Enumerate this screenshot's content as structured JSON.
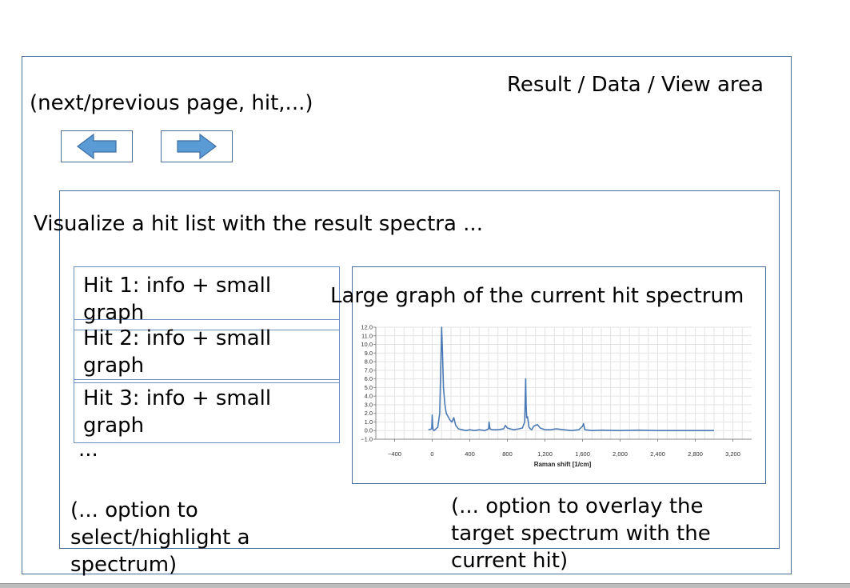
{
  "labels": {
    "result_area": "Result / Data / View area",
    "nav_hint": "(next/previous page, hit,...)",
    "visualize": "Visualize a hit list with the result spectra ...",
    "large_graph": "Large graph of the current hit spectrum",
    "ellipsis": "...",
    "option_select": "(... option to select/highlight a spectrum)",
    "option_overlay": "(... option to overlay the target spectrum with the current hit)"
  },
  "hits": [
    {
      "label": "Hit 1: info + small graph"
    },
    {
      "label": "Hit 2: info + small graph"
    },
    {
      "label": "Hit 3: info + small graph"
    }
  ],
  "icons": {
    "previous": "arrow-left-icon",
    "next": "arrow-right-icon"
  },
  "colors": {
    "frame": "#4a6e9a",
    "arrow": "#5b9bd5",
    "line": "#4a7ab5"
  },
  "chart_data": {
    "type": "line",
    "xlabel": "Raman shift [1/cm]",
    "ylabel": "",
    "xlim": [
      -600,
      3400
    ],
    "ylim": [
      -1.0,
      12.0
    ],
    "xticks": [
      -400,
      0,
      400,
      800,
      1200,
      1600,
      2000,
      2400,
      2800,
      3200
    ],
    "xtick_labels": [
      "−400",
      "0",
      "400",
      "800",
      "1,200",
      "1,600",
      "2,000",
      "2,400",
      "2,800",
      "3,200"
    ],
    "yticks": [
      -1,
      0,
      1,
      2,
      3,
      4,
      5,
      6,
      7,
      8,
      9,
      10,
      11,
      12
    ],
    "ytick_labels": [
      "−1.0",
      "0.0",
      "1.0",
      "2.0",
      "3.0",
      "4.0",
      "5.0",
      "6.0",
      "7.0",
      "8.0",
      "9.0",
      "10.0",
      "11.0",
      "12.0"
    ],
    "grid": true,
    "series": [
      {
        "x": [
          -40,
          -5,
          0,
          5,
          10,
          20,
          40,
          60,
          80,
          90,
          100,
          110,
          120,
          135,
          150,
          170,
          190,
          210,
          230,
          250,
          280,
          320,
          360,
          400,
          450,
          500,
          560,
          600,
          605,
          615,
          640,
          700,
          760,
          780,
          800,
          830,
          870,
          920,
          960,
          985,
          995,
          1000,
          1005,
          1015,
          1030,
          1045,
          1060,
          1080,
          1120,
          1150,
          1175,
          1200,
          1260,
          1320,
          1400,
          1480,
          1560,
          1600,
          1610,
          1625,
          1700,
          1800,
          2000,
          2200,
          2400,
          2600,
          2800,
          3000
        ],
        "y": [
          0.1,
          0.2,
          1.8,
          0.6,
          0.1,
          0.0,
          0.2,
          0.4,
          2.0,
          7.0,
          12.0,
          9.0,
          5.0,
          3.0,
          2.0,
          1.6,
          1.2,
          1.0,
          1.5,
          0.6,
          0.2,
          0.1,
          0.0,
          0.1,
          0.0,
          0.1,
          0.0,
          0.2,
          1.0,
          0.2,
          0.1,
          0.1,
          0.2,
          0.6,
          0.3,
          0.2,
          0.1,
          0.2,
          0.3,
          1.0,
          6.0,
          3.0,
          1.5,
          1.6,
          0.4,
          0.2,
          0.1,
          0.5,
          0.7,
          0.3,
          0.2,
          0.1,
          0.1,
          0.2,
          0.1,
          0.0,
          0.1,
          0.5,
          0.8,
          0.1,
          0.0,
          0.05,
          0.0,
          0.05,
          0.0,
          0.0,
          0.0,
          0.0
        ]
      }
    ]
  }
}
